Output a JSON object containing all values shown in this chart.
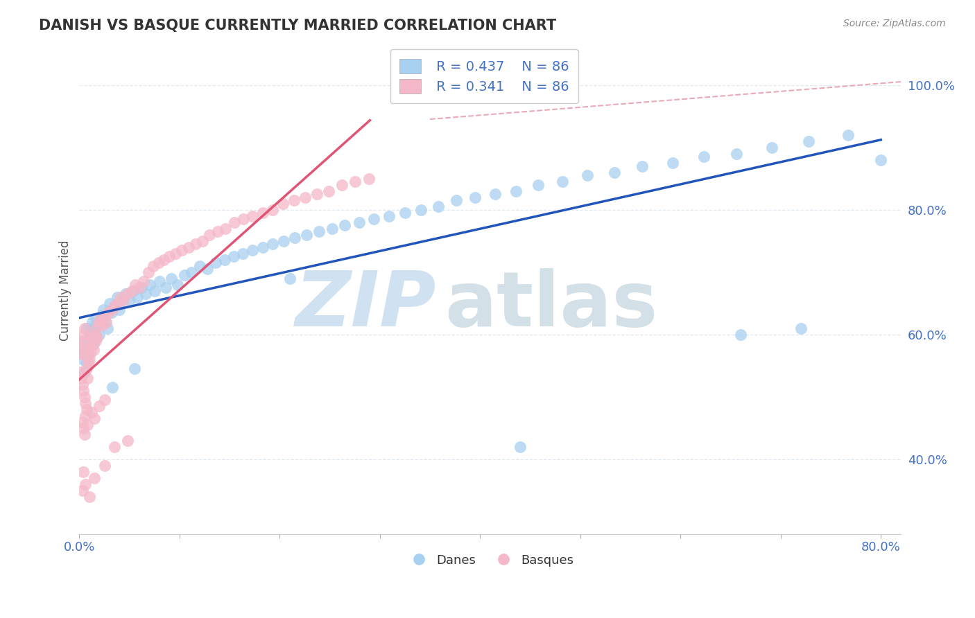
{
  "title": "DANISH VS BASQUE CURRENTLY MARRIED CORRELATION CHART",
  "source": "Source: ZipAtlas.com",
  "ylabel": "Currently Married",
  "xlim": [
    0.0,
    0.82
  ],
  "ylim": [
    0.28,
    1.06
  ],
  "yticks": [
    0.4,
    0.6,
    0.8,
    1.0
  ],
  "ytick_labels": [
    "40.0%",
    "60.0%",
    "80.0%",
    "100.0%"
  ],
  "xtick_positions": [
    0.0,
    0.1,
    0.2,
    0.3,
    0.4,
    0.5,
    0.6,
    0.7,
    0.8
  ],
  "xtick_labels_show": [
    "0.0%",
    "",
    "",
    "",
    "",
    "",
    "",
    "",
    "80.0%"
  ],
  "danes_R": 0.437,
  "danes_N": 86,
  "basques_R": 0.341,
  "basques_N": 86,
  "danes_color": "#A8D0F0",
  "basques_color": "#F5B8C8",
  "danes_line_color": "#2255BB",
  "basques_line_color": "#E05575",
  "ref_line_color": "#E8A0B0",
  "watermark_zip_color": "#C8DCF0",
  "watermark_atlas_color": "#B8CCD8",
  "title_color": "#333333",
  "tick_color": "#4472C4",
  "grid_color": "#E0E8F0",
  "source_color": "#888888",
  "legend_text_color": "#4472C4",
  "background_color": "#FFFFFF",
  "danes_x": [
    0.003,
    0.004,
    0.005,
    0.005,
    0.006,
    0.007,
    0.007,
    0.008,
    0.009,
    0.01,
    0.011,
    0.012,
    0.013,
    0.014,
    0.015,
    0.016,
    0.017,
    0.018,
    0.02,
    0.022,
    0.024,
    0.026,
    0.028,
    0.03,
    0.032,
    0.035,
    0.038,
    0.04,
    0.043,
    0.046,
    0.05,
    0.054,
    0.058,
    0.062,
    0.066,
    0.07,
    0.075,
    0.08,
    0.086,
    0.092,
    0.098,
    0.105,
    0.112,
    0.12,
    0.128,
    0.136,
    0.145,
    0.154,
    0.163,
    0.173,
    0.183,
    0.193,
    0.204,
    0.215,
    0.227,
    0.239,
    0.252,
    0.265,
    0.279,
    0.294,
    0.309,
    0.325,
    0.341,
    0.358,
    0.376,
    0.395,
    0.415,
    0.436,
    0.458,
    0.482,
    0.507,
    0.534,
    0.562,
    0.592,
    0.623,
    0.656,
    0.691,
    0.728,
    0.767,
    0.8,
    0.033,
    0.055,
    0.21,
    0.44,
    0.66,
    0.72
  ],
  "danes_y": [
    0.575,
    0.56,
    0.54,
    0.59,
    0.57,
    0.61,
    0.555,
    0.58,
    0.565,
    0.595,
    0.61,
    0.6,
    0.62,
    0.585,
    0.605,
    0.625,
    0.595,
    0.615,
    0.6,
    0.63,
    0.64,
    0.62,
    0.61,
    0.65,
    0.635,
    0.645,
    0.66,
    0.64,
    0.655,
    0.665,
    0.655,
    0.67,
    0.66,
    0.675,
    0.665,
    0.68,
    0.67,
    0.685,
    0.675,
    0.69,
    0.68,
    0.695,
    0.7,
    0.71,
    0.705,
    0.715,
    0.72,
    0.725,
    0.73,
    0.735,
    0.74,
    0.745,
    0.75,
    0.755,
    0.76,
    0.765,
    0.77,
    0.775,
    0.78,
    0.785,
    0.79,
    0.795,
    0.8,
    0.805,
    0.815,
    0.82,
    0.825,
    0.83,
    0.84,
    0.845,
    0.855,
    0.86,
    0.87,
    0.875,
    0.885,
    0.89,
    0.9,
    0.91,
    0.92,
    0.88,
    0.515,
    0.545,
    0.69,
    0.42,
    0.6,
    0.61
  ],
  "basques_x": [
    0.001,
    0.001,
    0.002,
    0.002,
    0.003,
    0.003,
    0.004,
    0.004,
    0.005,
    0.005,
    0.006,
    0.006,
    0.007,
    0.007,
    0.008,
    0.009,
    0.01,
    0.01,
    0.011,
    0.012,
    0.013,
    0.014,
    0.015,
    0.016,
    0.017,
    0.018,
    0.019,
    0.021,
    0.023,
    0.025,
    0.027,
    0.029,
    0.032,
    0.035,
    0.038,
    0.041,
    0.044,
    0.048,
    0.052,
    0.056,
    0.06,
    0.064,
    0.069,
    0.074,
    0.079,
    0.084,
    0.09,
    0.096,
    0.102,
    0.109,
    0.116,
    0.123,
    0.13,
    0.138,
    0.146,
    0.155,
    0.164,
    0.173,
    0.183,
    0.193,
    0.203,
    0.214,
    0.225,
    0.237,
    0.249,
    0.262,
    0.275,
    0.289,
    0.035,
    0.048,
    0.003,
    0.004,
    0.005,
    0.006,
    0.007,
    0.008,
    0.012,
    0.015,
    0.02,
    0.025,
    0.003,
    0.004,
    0.006,
    0.01,
    0.015,
    0.025
  ],
  "basques_y": [
    0.54,
    0.57,
    0.53,
    0.58,
    0.52,
    0.59,
    0.51,
    0.6,
    0.5,
    0.61,
    0.49,
    0.565,
    0.545,
    0.575,
    0.53,
    0.555,
    0.56,
    0.595,
    0.57,
    0.58,
    0.59,
    0.575,
    0.6,
    0.59,
    0.61,
    0.595,
    0.62,
    0.625,
    0.615,
    0.63,
    0.62,
    0.635,
    0.64,
    0.645,
    0.65,
    0.66,
    0.655,
    0.665,
    0.67,
    0.68,
    0.675,
    0.685,
    0.7,
    0.71,
    0.715,
    0.72,
    0.725,
    0.73,
    0.735,
    0.74,
    0.745,
    0.75,
    0.76,
    0.765,
    0.77,
    0.78,
    0.785,
    0.79,
    0.795,
    0.8,
    0.81,
    0.815,
    0.82,
    0.825,
    0.83,
    0.84,
    0.845,
    0.85,
    0.42,
    0.43,
    0.46,
    0.45,
    0.44,
    0.47,
    0.48,
    0.455,
    0.475,
    0.465,
    0.485,
    0.495,
    0.35,
    0.38,
    0.36,
    0.34,
    0.37,
    0.39
  ]
}
